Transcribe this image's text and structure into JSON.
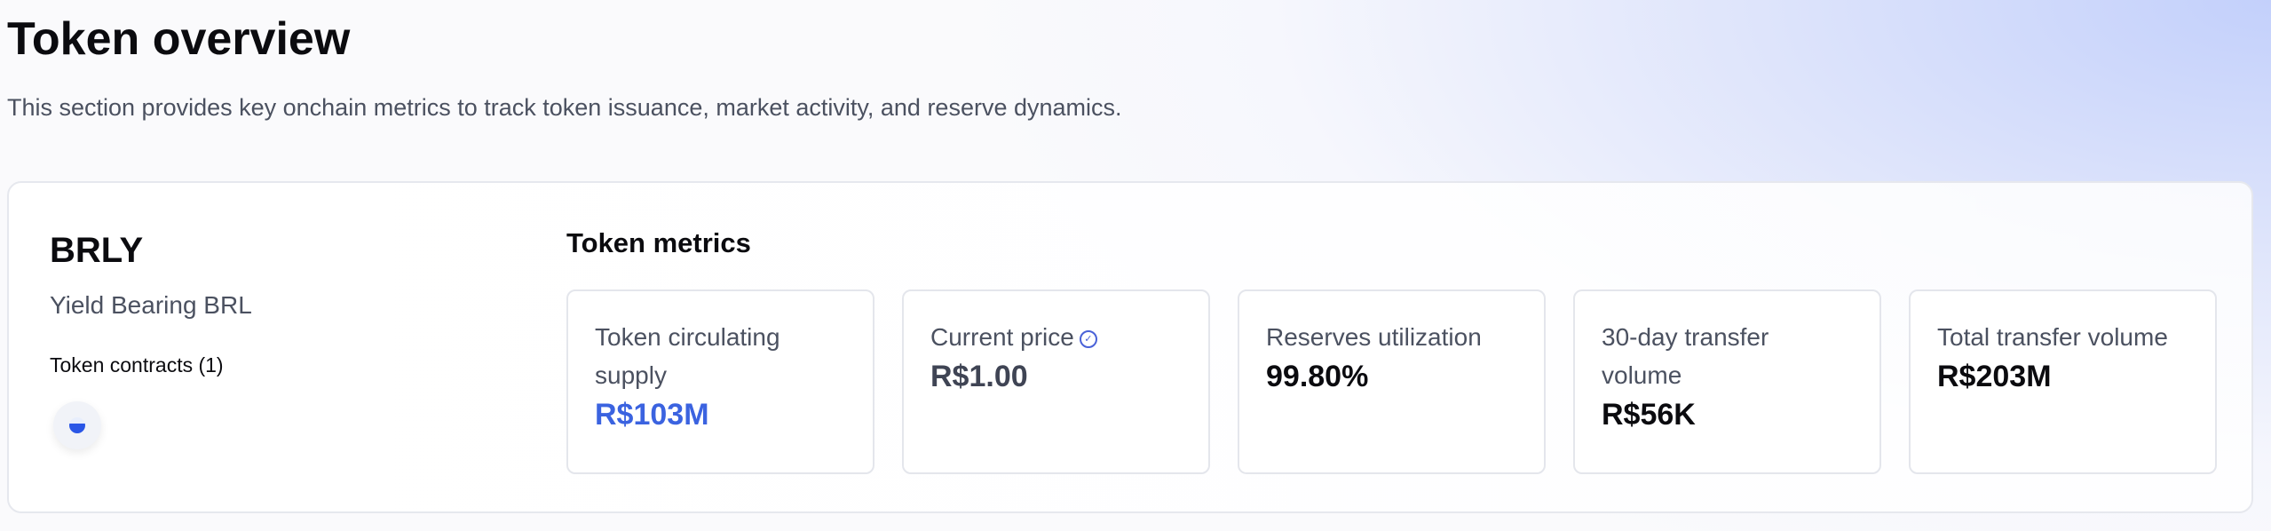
{
  "header": {
    "title": "Token overview",
    "subtitle": "This section provides key onchain metrics to track token issuance, market activity, and reserve dynamics."
  },
  "token": {
    "symbol": "BRLY",
    "name": "Yield Bearing BRL",
    "contracts_label": "Token contracts (1)",
    "contract_icon": "token-logo-icon"
  },
  "metrics": {
    "title": "Token metrics",
    "items": [
      {
        "label": "Token circulating supply",
        "value": "R$103M",
        "color": "#3b63e0"
      },
      {
        "label": "Current price",
        "value": "R$1.00",
        "color": "#3f4454",
        "icon": "verified-check-icon"
      },
      {
        "label": "Reserves utilization",
        "value": "99.80%",
        "color": "#0b0b0f"
      },
      {
        "label": "30-day transfer volume",
        "value": "R$56K",
        "color": "#0b0b0f"
      },
      {
        "label": "Total transfer volume",
        "value": "R$203M",
        "color": "#0b0b0f"
      }
    ]
  }
}
